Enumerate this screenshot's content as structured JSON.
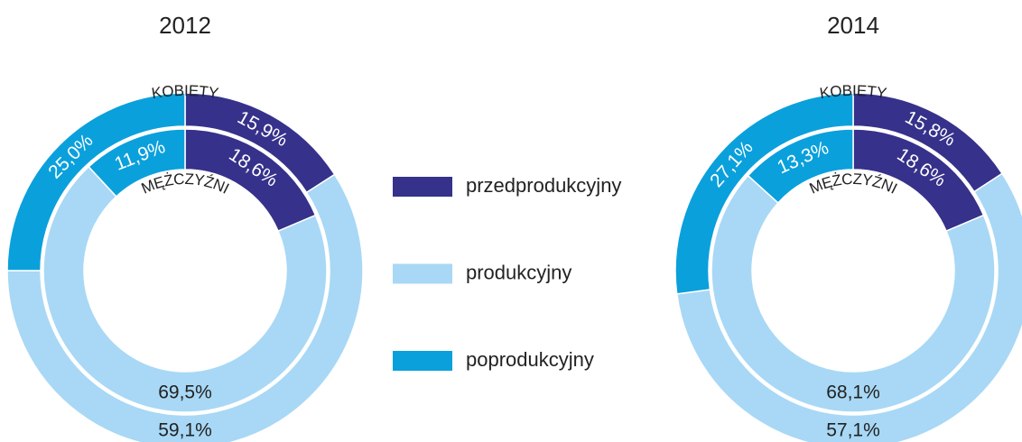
{
  "chart_data": {
    "type": "donut",
    "categories": [
      "przedprodukcyjny",
      "produkcyjny",
      "poprodukcyjny"
    ],
    "colors": [
      "#36318a",
      "#a8d8f5",
      "#0aa0dc"
    ],
    "charts": [
      {
        "title": "2012",
        "series": [
          {
            "name": "KOBIETY",
            "values": [
              15.9,
              59.1,
              25.0
            ],
            "value_labels": [
              "15,9%",
              "59,1%",
              "25,0%"
            ]
          },
          {
            "name": "MĘŻCZYŹNI",
            "values": [
              18.6,
              69.5,
              11.9
            ],
            "value_labels": [
              "18,6%",
              "69,5%",
              "11,9%"
            ]
          }
        ]
      },
      {
        "title": "2014",
        "series": [
          {
            "name": "KOBIETY",
            "values": [
              15.8,
              57.1,
              27.1
            ],
            "value_labels": [
              "15,8%",
              "57,1%",
              "27,1%"
            ]
          },
          {
            "name": "MĘŻCZYŹNI",
            "values": [
              18.6,
              68.1,
              13.3
            ],
            "value_labels": [
              "18,6%",
              "68,1%",
              "13,3%"
            ]
          }
        ]
      }
    ]
  }
}
